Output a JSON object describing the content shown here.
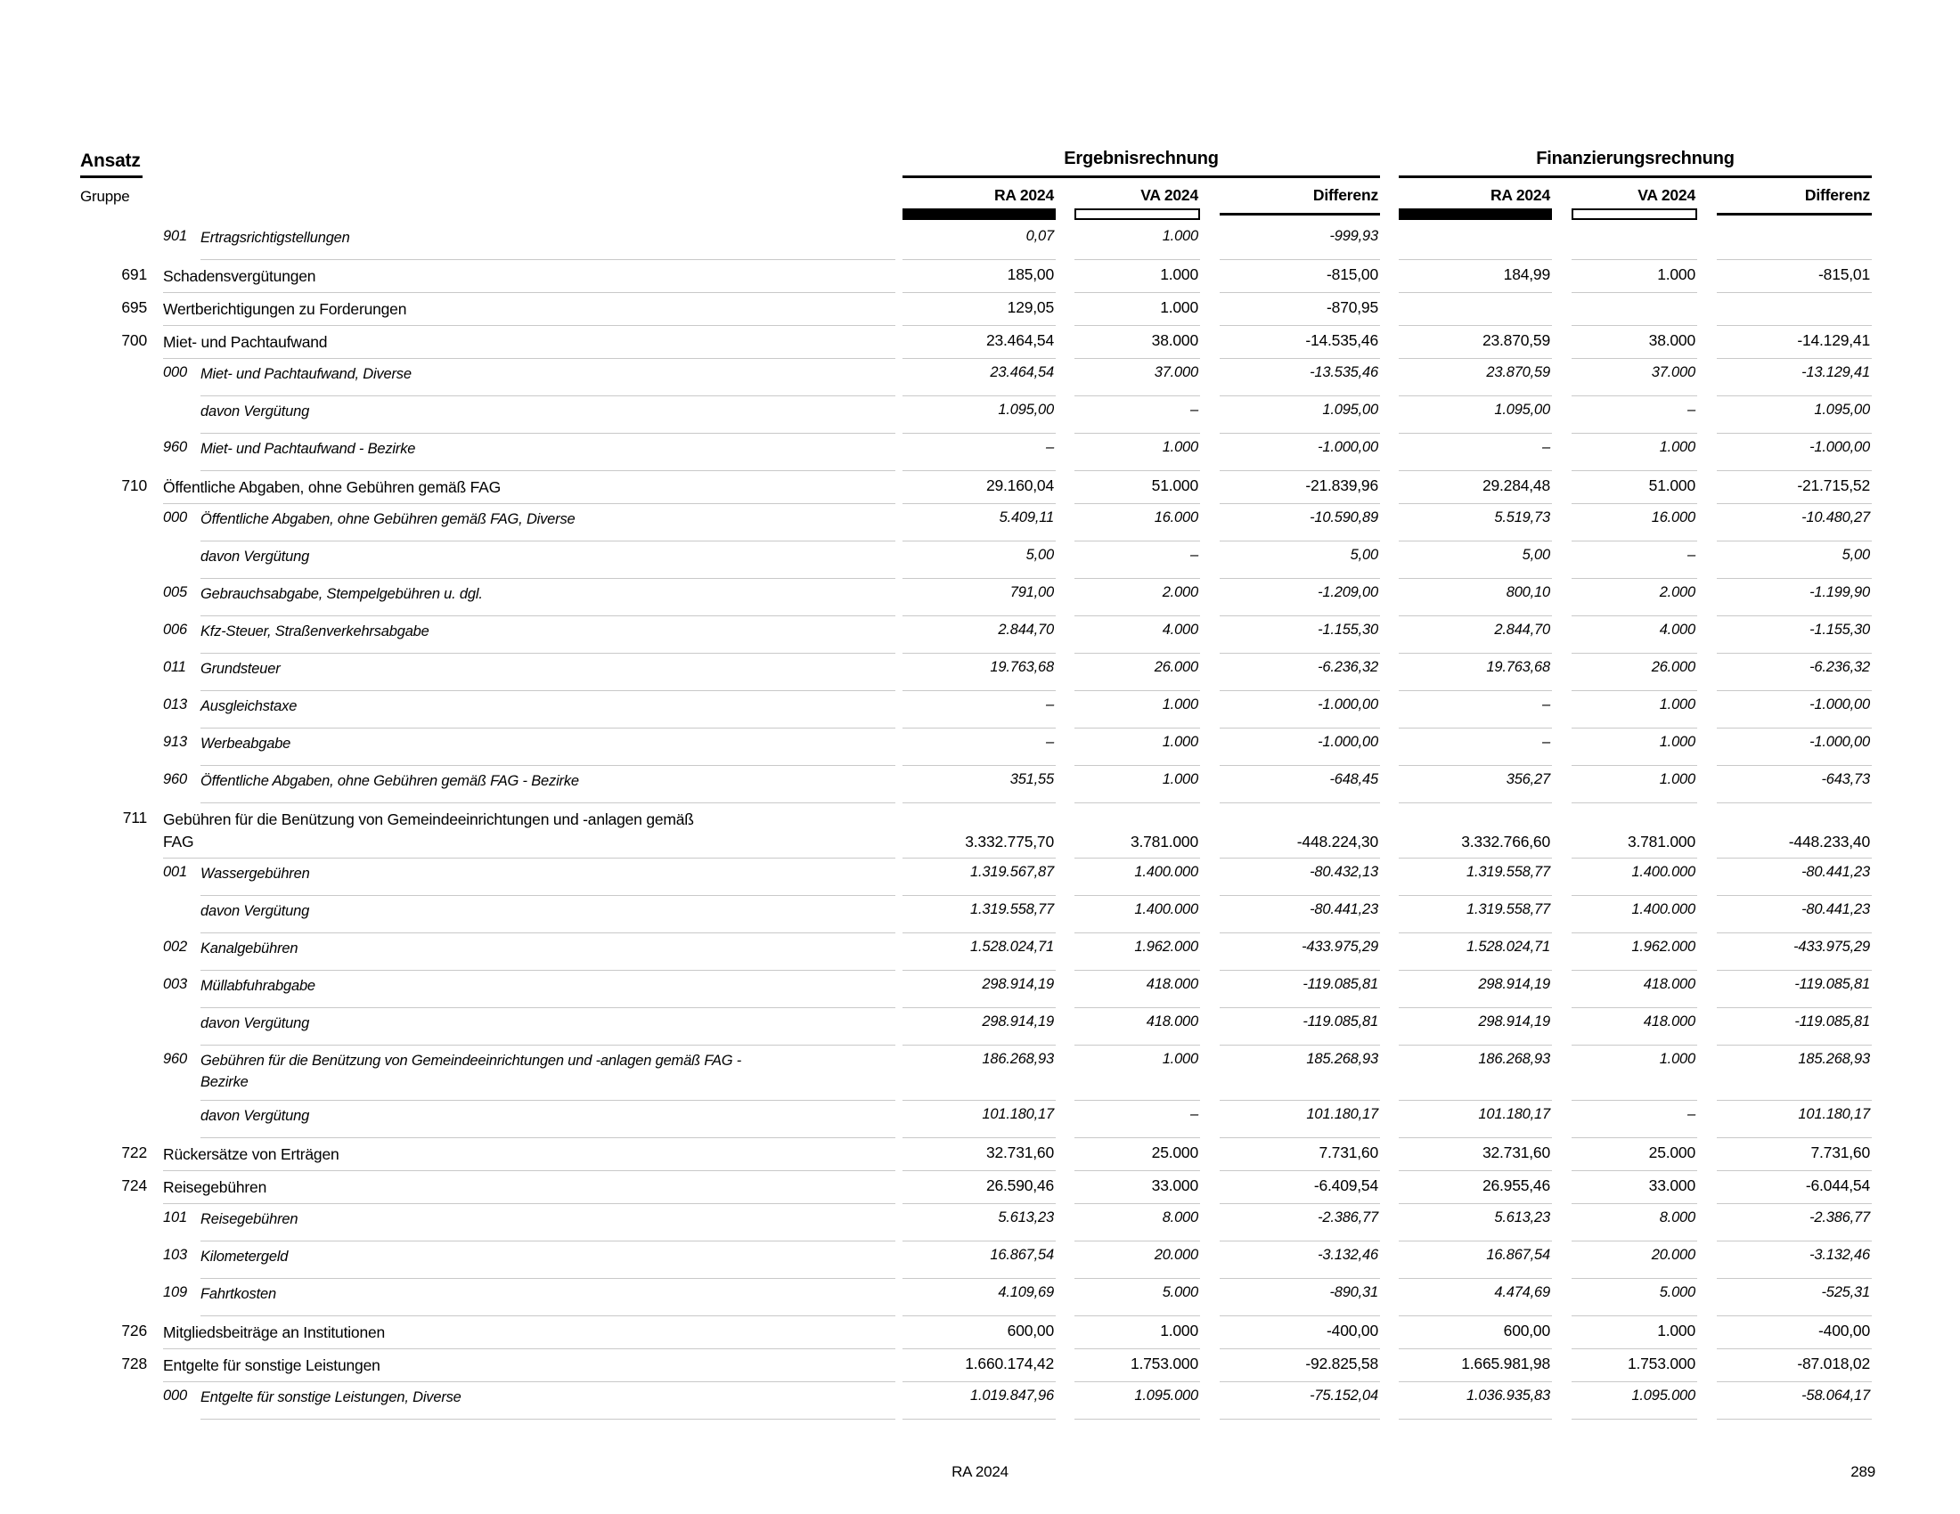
{
  "header": {
    "ansatz_label": "Ansatz",
    "gruppe_label": "Gruppe",
    "groups": [
      {
        "title": "Ergebnisrechnung",
        "columns": [
          "RA 2024",
          "VA 2024",
          "Differenz"
        ]
      },
      {
        "title": "Finanzierungsrechnung",
        "columns": [
          "RA 2024",
          "VA 2024",
          "Differenz"
        ]
      }
    ]
  },
  "colors": {
    "text": "#000000",
    "row_rule": "#c9c9c9",
    "header_bar_filled": "#000000",
    "header_bar_outline": "#000000"
  },
  "rows": [
    {
      "kind": "sub",
      "code": "",
      "sub": "901",
      "label": "Ertragsrichtigstellungen",
      "erg": [
        "0,07",
        "1.000",
        "-999,93"
      ],
      "fin": [
        "",
        "",
        ""
      ]
    },
    {
      "kind": "group",
      "code": "691",
      "sub": "",
      "label": "Schadensvergütungen",
      "erg": [
        "185,00",
        "1.000",
        "-815,00"
      ],
      "fin": [
        "184,99",
        "1.000",
        "-815,01"
      ]
    },
    {
      "kind": "group",
      "code": "695",
      "sub": "",
      "label": "Wertberichtigungen zu Forderungen",
      "erg": [
        "129,05",
        "1.000",
        "-870,95"
      ],
      "fin": [
        "",
        "",
        ""
      ]
    },
    {
      "kind": "group",
      "code": "700",
      "sub": "",
      "label": "Miet- und Pachtaufwand",
      "erg": [
        "23.464,54",
        "38.000",
        "-14.535,46"
      ],
      "fin": [
        "23.870,59",
        "38.000",
        "-14.129,41"
      ]
    },
    {
      "kind": "sub",
      "code": "",
      "sub": "000",
      "label": "Miet- und Pachtaufwand, Diverse",
      "erg": [
        "23.464,54",
        "37.000",
        "-13.535,46"
      ],
      "fin": [
        "23.870,59",
        "37.000",
        "-13.129,41"
      ]
    },
    {
      "kind": "sub",
      "code": "",
      "sub": "",
      "label": "davon Vergütung",
      "erg": [
        "1.095,00",
        "–",
        "1.095,00"
      ],
      "fin": [
        "1.095,00",
        "–",
        "1.095,00"
      ]
    },
    {
      "kind": "sub",
      "code": "",
      "sub": "960",
      "label": "Miet- und Pachtaufwand - Bezirke",
      "erg": [
        "–",
        "1.000",
        "-1.000,00"
      ],
      "fin": [
        "–",
        "1.000",
        "-1.000,00"
      ]
    },
    {
      "kind": "group",
      "code": "710",
      "sub": "",
      "label": "Öffentliche Abgaben, ohne Gebühren gemäß FAG",
      "erg": [
        "29.160,04",
        "51.000",
        "-21.839,96"
      ],
      "fin": [
        "29.284,48",
        "51.000",
        "-21.715,52"
      ]
    },
    {
      "kind": "sub",
      "code": "",
      "sub": "000",
      "label": "Öffentliche Abgaben, ohne Gebühren gemäß FAG, Diverse",
      "erg": [
        "5.409,11",
        "16.000",
        "-10.590,89"
      ],
      "fin": [
        "5.519,73",
        "16.000",
        "-10.480,27"
      ]
    },
    {
      "kind": "sub",
      "code": "",
      "sub": "",
      "label": "davon Vergütung",
      "erg": [
        "5,00",
        "–",
        "5,00"
      ],
      "fin": [
        "5,00",
        "–",
        "5,00"
      ]
    },
    {
      "kind": "sub",
      "code": "",
      "sub": "005",
      "label": "Gebrauchsabgabe, Stempelgebühren u. dgl.",
      "erg": [
        "791,00",
        "2.000",
        "-1.209,00"
      ],
      "fin": [
        "800,10",
        "2.000",
        "-1.199,90"
      ]
    },
    {
      "kind": "sub",
      "code": "",
      "sub": "006",
      "label": "Kfz-Steuer, Straßenverkehrsabgabe",
      "erg": [
        "2.844,70",
        "4.000",
        "-1.155,30"
      ],
      "fin": [
        "2.844,70",
        "4.000",
        "-1.155,30"
      ]
    },
    {
      "kind": "sub",
      "code": "",
      "sub": "011",
      "label": "Grundsteuer",
      "erg": [
        "19.763,68",
        "26.000",
        "-6.236,32"
      ],
      "fin": [
        "19.763,68",
        "26.000",
        "-6.236,32"
      ]
    },
    {
      "kind": "sub",
      "code": "",
      "sub": "013",
      "label": "Ausgleichstaxe",
      "erg": [
        "–",
        "1.000",
        "-1.000,00"
      ],
      "fin": [
        "–",
        "1.000",
        "-1.000,00"
      ]
    },
    {
      "kind": "sub",
      "code": "",
      "sub": "913",
      "label": "Werbeabgabe",
      "erg": [
        "–",
        "1.000",
        "-1.000,00"
      ],
      "fin": [
        "–",
        "1.000",
        "-1.000,00"
      ]
    },
    {
      "kind": "sub",
      "code": "",
      "sub": "960",
      "label": "Öffentliche Abgaben, ohne Gebühren gemäß FAG - Bezirke",
      "erg": [
        "351,55",
        "1.000",
        "-648,45"
      ],
      "fin": [
        "356,27",
        "1.000",
        "-643,73"
      ]
    },
    {
      "kind": "group",
      "code": "711",
      "sub": "",
      "label": "Gebühren für die Benützung von Gemeindeeinrichtungen und -anlagen gemäß\nFAG",
      "two_line": true,
      "valign": "bottom",
      "erg": [
        "3.332.775,70",
        "3.781.000",
        "-448.224,30"
      ],
      "fin": [
        "3.332.766,60",
        "3.781.000",
        "-448.233,40"
      ]
    },
    {
      "kind": "sub",
      "code": "",
      "sub": "001",
      "label": "Wassergebühren",
      "erg": [
        "1.319.567,87",
        "1.400.000",
        "-80.432,13"
      ],
      "fin": [
        "1.319.558,77",
        "1.400.000",
        "-80.441,23"
      ]
    },
    {
      "kind": "sub",
      "code": "",
      "sub": "",
      "label": "davon Vergütung",
      "erg": [
        "1.319.558,77",
        "1.400.000",
        "-80.441,23"
      ],
      "fin": [
        "1.319.558,77",
        "1.400.000",
        "-80.441,23"
      ]
    },
    {
      "kind": "sub",
      "code": "",
      "sub": "002",
      "label": "Kanalgebühren",
      "erg": [
        "1.528.024,71",
        "1.962.000",
        "-433.975,29"
      ],
      "fin": [
        "1.528.024,71",
        "1.962.000",
        "-433.975,29"
      ]
    },
    {
      "kind": "sub",
      "code": "",
      "sub": "003",
      "label": "Müllabfuhrabgabe",
      "erg": [
        "298.914,19",
        "418.000",
        "-119.085,81"
      ],
      "fin": [
        "298.914,19",
        "418.000",
        "-119.085,81"
      ]
    },
    {
      "kind": "sub",
      "code": "",
      "sub": "",
      "label": "davon Vergütung",
      "erg": [
        "298.914,19",
        "418.000",
        "-119.085,81"
      ],
      "fin": [
        "298.914,19",
        "418.000",
        "-119.085,81"
      ]
    },
    {
      "kind": "sub",
      "code": "",
      "sub": "960",
      "label": "Gebühren für die Benützung von Gemeindeeinrichtungen und -anlagen gemäß FAG -\nBezirke",
      "two_line": true,
      "valign": "top",
      "erg": [
        "186.268,93",
        "1.000",
        "185.268,93"
      ],
      "fin": [
        "186.268,93",
        "1.000",
        "185.268,93"
      ]
    },
    {
      "kind": "sub",
      "code": "",
      "sub": "",
      "label": "davon Vergütung",
      "erg": [
        "101.180,17",
        "–",
        "101.180,17"
      ],
      "fin": [
        "101.180,17",
        "–",
        "101.180,17"
      ]
    },
    {
      "kind": "group",
      "code": "722",
      "sub": "",
      "label": "Rückersätze von Erträgen",
      "erg": [
        "32.731,60",
        "25.000",
        "7.731,60"
      ],
      "fin": [
        "32.731,60",
        "25.000",
        "7.731,60"
      ]
    },
    {
      "kind": "group",
      "code": "724",
      "sub": "",
      "label": "Reisegebühren",
      "erg": [
        "26.590,46",
        "33.000",
        "-6.409,54"
      ],
      "fin": [
        "26.955,46",
        "33.000",
        "-6.044,54"
      ]
    },
    {
      "kind": "sub",
      "code": "",
      "sub": "101",
      "label": "Reisegebühren",
      "erg": [
        "5.613,23",
        "8.000",
        "-2.386,77"
      ],
      "fin": [
        "5.613,23",
        "8.000",
        "-2.386,77"
      ]
    },
    {
      "kind": "sub",
      "code": "",
      "sub": "103",
      "label": "Kilometergeld",
      "erg": [
        "16.867,54",
        "20.000",
        "-3.132,46"
      ],
      "fin": [
        "16.867,54",
        "20.000",
        "-3.132,46"
      ]
    },
    {
      "kind": "sub",
      "code": "",
      "sub": "109",
      "label": "Fahrtkosten",
      "erg": [
        "4.109,69",
        "5.000",
        "-890,31"
      ],
      "fin": [
        "4.474,69",
        "5.000",
        "-525,31"
      ]
    },
    {
      "kind": "group",
      "code": "726",
      "sub": "",
      "label": "Mitgliedsbeiträge an Institutionen",
      "erg": [
        "600,00",
        "1.000",
        "-400,00"
      ],
      "fin": [
        "600,00",
        "1.000",
        "-400,00"
      ]
    },
    {
      "kind": "group",
      "code": "728",
      "sub": "",
      "label": "Entgelte für sonstige Leistungen",
      "erg": [
        "1.660.174,42",
        "1.753.000",
        "-92.825,58"
      ],
      "fin": [
        "1.665.981,98",
        "1.753.000",
        "-87.018,02"
      ]
    },
    {
      "kind": "sub",
      "code": "",
      "sub": "000",
      "label": "Entgelte für sonstige Leistungen, Diverse",
      "erg": [
        "1.019.847,96",
        "1.095.000",
        "-75.152,04"
      ],
      "fin": [
        "1.036.935,83",
        "1.095.000",
        "-58.064,17"
      ]
    }
  ],
  "footer": {
    "center": "RA 2024",
    "page": "289"
  }
}
